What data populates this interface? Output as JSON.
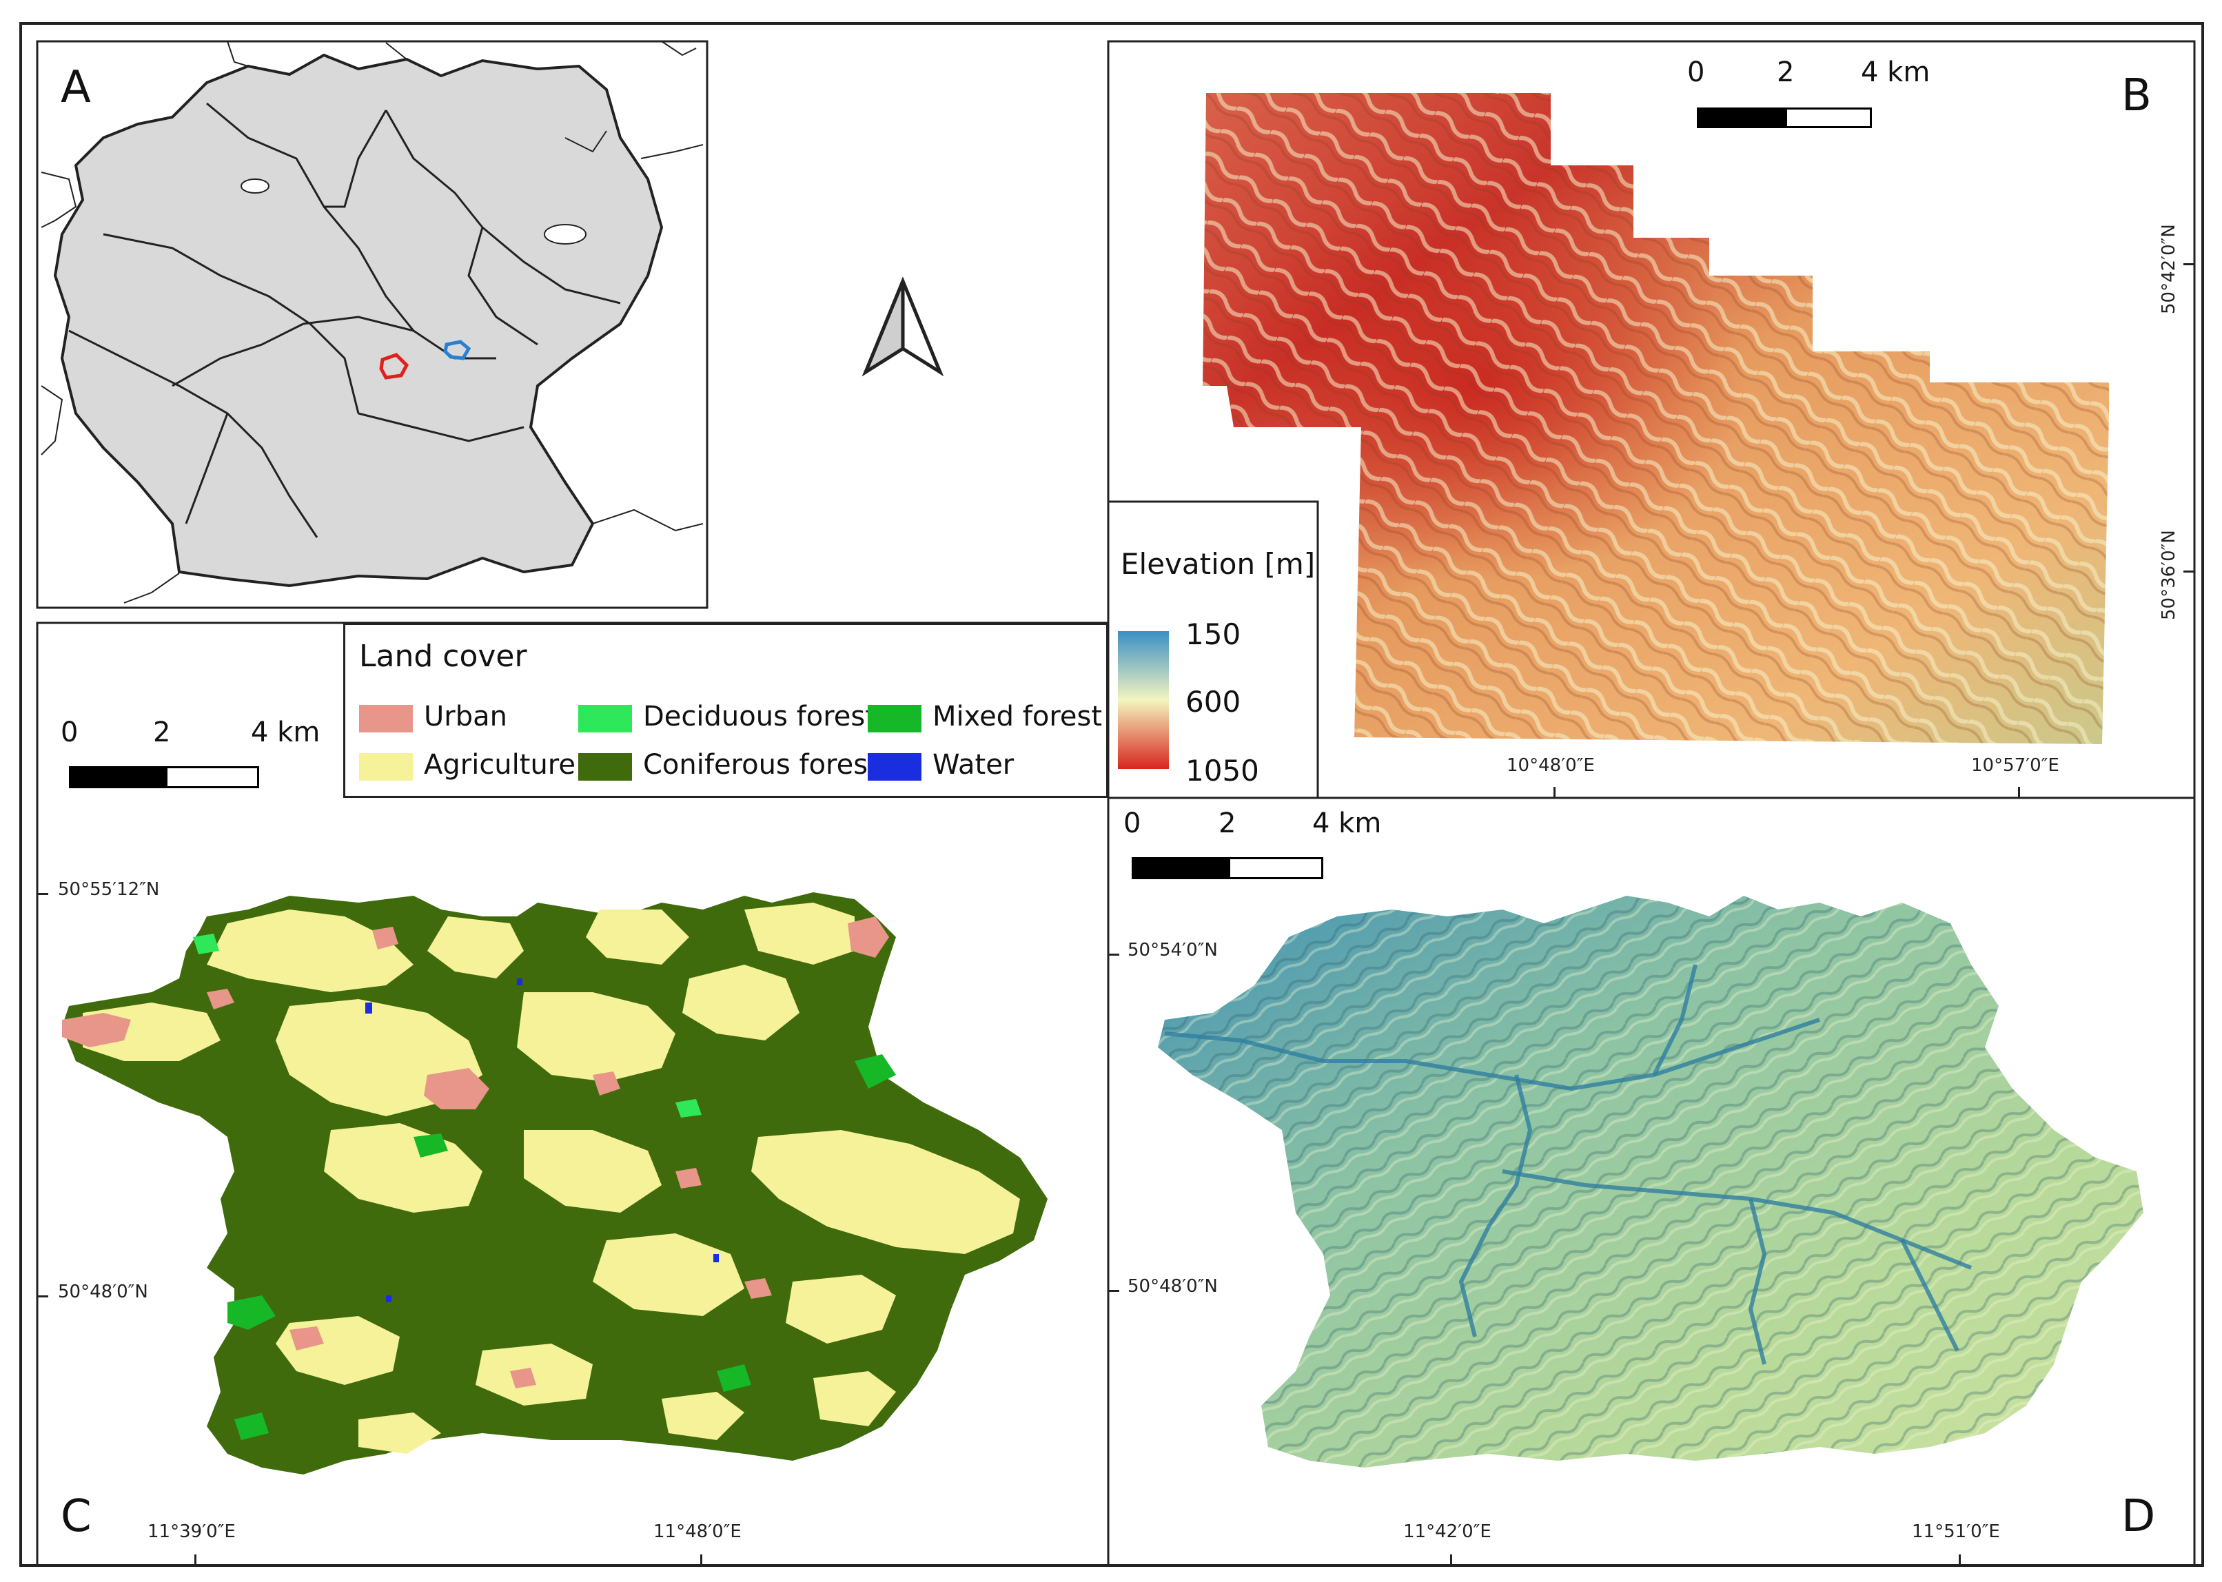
{
  "panels": {
    "a": {
      "letter": "A"
    },
    "b": {
      "letter": "B"
    },
    "c": {
      "letter": "C"
    },
    "d": {
      "letter": "D"
    }
  },
  "scalebar": {
    "labels": [
      "0",
      "2",
      "4 km"
    ]
  },
  "elevation_legend": {
    "title": "Elevation [m]",
    "values": [
      "150",
      "600",
      "1050"
    ],
    "colors": {
      "low": "#3a8fc4",
      "mid": "#f3f5c0",
      "high": "#d7261f"
    }
  },
  "land_cover_legend": {
    "title": "Land cover",
    "items": [
      {
        "label": "Urban",
        "color": "#e8958a"
      },
      {
        "label": "Agriculture",
        "color": "#f6f29a"
      },
      {
        "label": "Deciduous forest",
        "color": "#2ee85a"
      },
      {
        "label": "Coniferous forest",
        "color": "#3f6b0c"
      },
      {
        "label": "Mixed forest",
        "color": "#16b827"
      },
      {
        "label": "Water",
        "color": "#1a2ee0"
      }
    ]
  },
  "coords": {
    "b_lat": [
      "50°42′0″N",
      "50°36′0″N"
    ],
    "b_lon": [
      "10°48′0″E",
      "10°57′0″E"
    ],
    "c_lat": [
      "50°55′12″N",
      "50°48′0″N"
    ],
    "c_lon": [
      "11°39′0″E",
      "11°48′0″E"
    ],
    "d_lat": [
      "50°54′0″N",
      "50°48′0″N"
    ],
    "d_lon": [
      "11°42′0″E",
      "11°51′0″E"
    ]
  },
  "map_a": {
    "country_fill": "#d9d9d9",
    "study_area_colors": {
      "red": "#e0201c",
      "blue": "#2a7fd4"
    },
    "north_arrow": "north-arrow-icon"
  }
}
